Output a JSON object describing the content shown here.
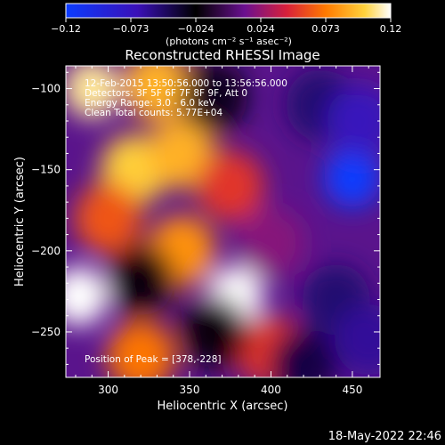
{
  "chart_data": {
    "type": "heatmap",
    "title": "Reconstructed RHESSI Image",
    "xlabel": "Heliocentric X (arcsec)",
    "ylabel": "Heliocentric Y (arcsec)",
    "xlim": [
      274,
      467
    ],
    "ylim": [
      -278,
      -86
    ],
    "x_ticks": [
      300,
      350,
      400,
      450
    ],
    "y_ticks": [
      -100,
      -150,
      -200,
      -250
    ],
    "colorbar": {
      "range": [
        -0.12,
        0.12
      ],
      "ticks": [
        "−0.12",
        "−0.073",
        "−0.024",
        "0.024",
        "0.073",
        "0.12"
      ],
      "units_label": "(photons cm⁻² s⁻¹ asec⁻²)",
      "colors": [
        "#0b3cff",
        "#3a10b8",
        "#000000",
        "#6a1090",
        "#d8203a",
        "#ff7a00",
        "#ffd23c",
        "#ffffff"
      ]
    },
    "annotations": {
      "time_range": "12-Feb-2015 13:50:56.000 to 13:56:56.000",
      "detectors": "Detectors: 3F 5F 6F 7F 8F 9F, Att 0",
      "energy": "Energy Range: 3.0 - 6.0 keV",
      "clean": "Clean      Total counts: 5.77E+04",
      "peak": "Position of Peak = [378,-228]"
    },
    "peak_position": [
      378,
      -228
    ],
    "blobs": [
      {
        "x": 290,
        "y": -100,
        "value": 0.11
      },
      {
        "x": 330,
        "y": -98,
        "value": 0.09
      },
      {
        "x": 316,
        "y": -150,
        "value": 0.1
      },
      {
        "x": 345,
        "y": -140,
        "value": 0.09
      },
      {
        "x": 300,
        "y": -180,
        "value": 0.06
      },
      {
        "x": 282,
        "y": -228,
        "value": 0.12
      },
      {
        "x": 345,
        "y": -200,
        "value": 0.08
      },
      {
        "x": 378,
        "y": -228,
        "value": 0.12
      },
      {
        "x": 375,
        "y": -160,
        "value": 0.05
      },
      {
        "x": 320,
        "y": -265,
        "value": 0.07
      },
      {
        "x": 400,
        "y": -262,
        "value": 0.05
      },
      {
        "x": 320,
        "y": -218,
        "value": -0.02
      },
      {
        "x": 365,
        "y": -105,
        "value": -0.03
      },
      {
        "x": 365,
        "y": -250,
        "value": -0.02
      },
      {
        "x": 400,
        "y": -195,
        "value": 0.02
      },
      {
        "x": 430,
        "y": -110,
        "value": -0.05
      },
      {
        "x": 450,
        "y": -155,
        "value": -0.12
      },
      {
        "x": 455,
        "y": -120,
        "value": -0.07
      },
      {
        "x": 440,
        "y": -230,
        "value": -0.05
      },
      {
        "x": 460,
        "y": -255,
        "value": -0.06
      },
      {
        "x": 420,
        "y": -270,
        "value": -0.04
      }
    ]
  },
  "footer": {
    "timestamp": "18-May-2022 22:46"
  }
}
